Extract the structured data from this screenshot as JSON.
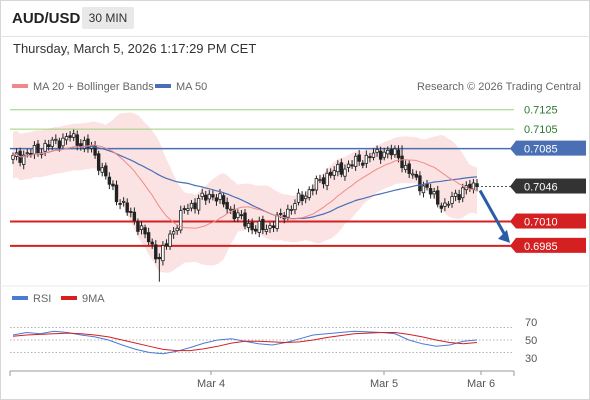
{
  "header": {
    "symbol": "AUD/USD",
    "timeframe": "30 MIN",
    "datetime": "Thursday, March 5, 2026 1:17:29 PM CET"
  },
  "legend": {
    "ma20": "MA 20 + Bollinger Bands",
    "ma50": "MA 50",
    "copyright": "Research © 2026 Trading Central"
  },
  "rsi_legend": {
    "rsi": "RSI",
    "ma9": "9MA"
  },
  "colors": {
    "ma20": "#f08a8a",
    "band": "#fbd9d9",
    "ma50": "#4a6fb5",
    "up": "#2d7a2d",
    "down": "#d42020",
    "current": "#333333",
    "arrow": "#2a5ca8",
    "rsi": "#4a7bd6",
    "rsi_ma": "#d42020",
    "candle": "#222222"
  },
  "chart_data": [
    {
      "type": "candlestick",
      "x_ticks": [
        "Mar 4",
        "Mar 5",
        "Mar 6"
      ],
      "y_range": [
        0.6955,
        0.7135
      ],
      "levels": [
        {
          "value": "0.7125",
          "kind": "target"
        },
        {
          "value": "0.7105",
          "kind": "target"
        },
        {
          "value": "0.7085",
          "kind": "pivot"
        },
        {
          "value": "0.7046",
          "kind": "current"
        },
        {
          "value": "0.7010",
          "kind": "support"
        },
        {
          "value": "0.6985",
          "kind": "support"
        }
      ],
      "close_path": [
        [
          0,
          0.7075
        ],
        [
          6,
          0.7082
        ],
        [
          12,
          0.7092
        ],
        [
          16,
          0.7097
        ],
        [
          22,
          0.7085
        ],
        [
          26,
          0.7055
        ],
        [
          30,
          0.703
        ],
        [
          34,
          0.7012
        ],
        [
          38,
          0.699
        ],
        [
          41,
          0.6972
        ],
        [
          44,
          0.6995
        ],
        [
          48,
          0.7022
        ],
        [
          52,
          0.7032
        ],
        [
          56,
          0.7038
        ],
        [
          60,
          0.7025
        ],
        [
          64,
          0.7012
        ],
        [
          68,
          0.7002
        ],
        [
          72,
          0.7005
        ],
        [
          76,
          0.7018
        ],
        [
          80,
          0.7032
        ],
        [
          84,
          0.7045
        ],
        [
          88,
          0.7058
        ],
        [
          92,
          0.7064
        ],
        [
          96,
          0.7071
        ],
        [
          100,
          0.7077
        ],
        [
          104,
          0.7082
        ],
        [
          108,
          0.7078
        ],
        [
          110,
          0.7064
        ],
        [
          114,
          0.7049
        ],
        [
          118,
          0.7036
        ],
        [
          121,
          0.7024
        ],
        [
          124,
          0.7038
        ],
        [
          127,
          0.7044
        ],
        [
          130,
          0.7047
        ]
      ],
      "bar_count": 131,
      "forecast": {
        "from": 0.7046,
        "to": 0.6985
      },
      "series": [
        {
          "name": "MA 20 + Bollinger Bands"
        },
        {
          "name": "MA 50"
        }
      ]
    },
    {
      "type": "line",
      "y_ticks": [
        "70",
        "50",
        "30"
      ],
      "y_range": [
        10,
        90
      ],
      "series": [
        {
          "name": "RSI",
          "values": [
            58,
            62,
            60,
            64,
            62,
            58,
            55,
            50,
            42,
            35,
            30,
            28,
            32,
            38,
            45,
            50,
            52,
            48,
            44,
            42,
            46,
            52,
            58,
            60,
            62,
            64,
            63,
            62,
            60,
            50,
            44,
            40,
            42,
            48,
            50
          ]
        },
        {
          "name": "9MA",
          "values": [
            56,
            58,
            59,
            60,
            61,
            60,
            58,
            55,
            50,
            45,
            40,
            35,
            33,
            33,
            36,
            40,
            45,
            48,
            48,
            47,
            46,
            47,
            50,
            54,
            57,
            60,
            61,
            62,
            62,
            59,
            55,
            50,
            46,
            44,
            46
          ]
        }
      ]
    }
  ]
}
